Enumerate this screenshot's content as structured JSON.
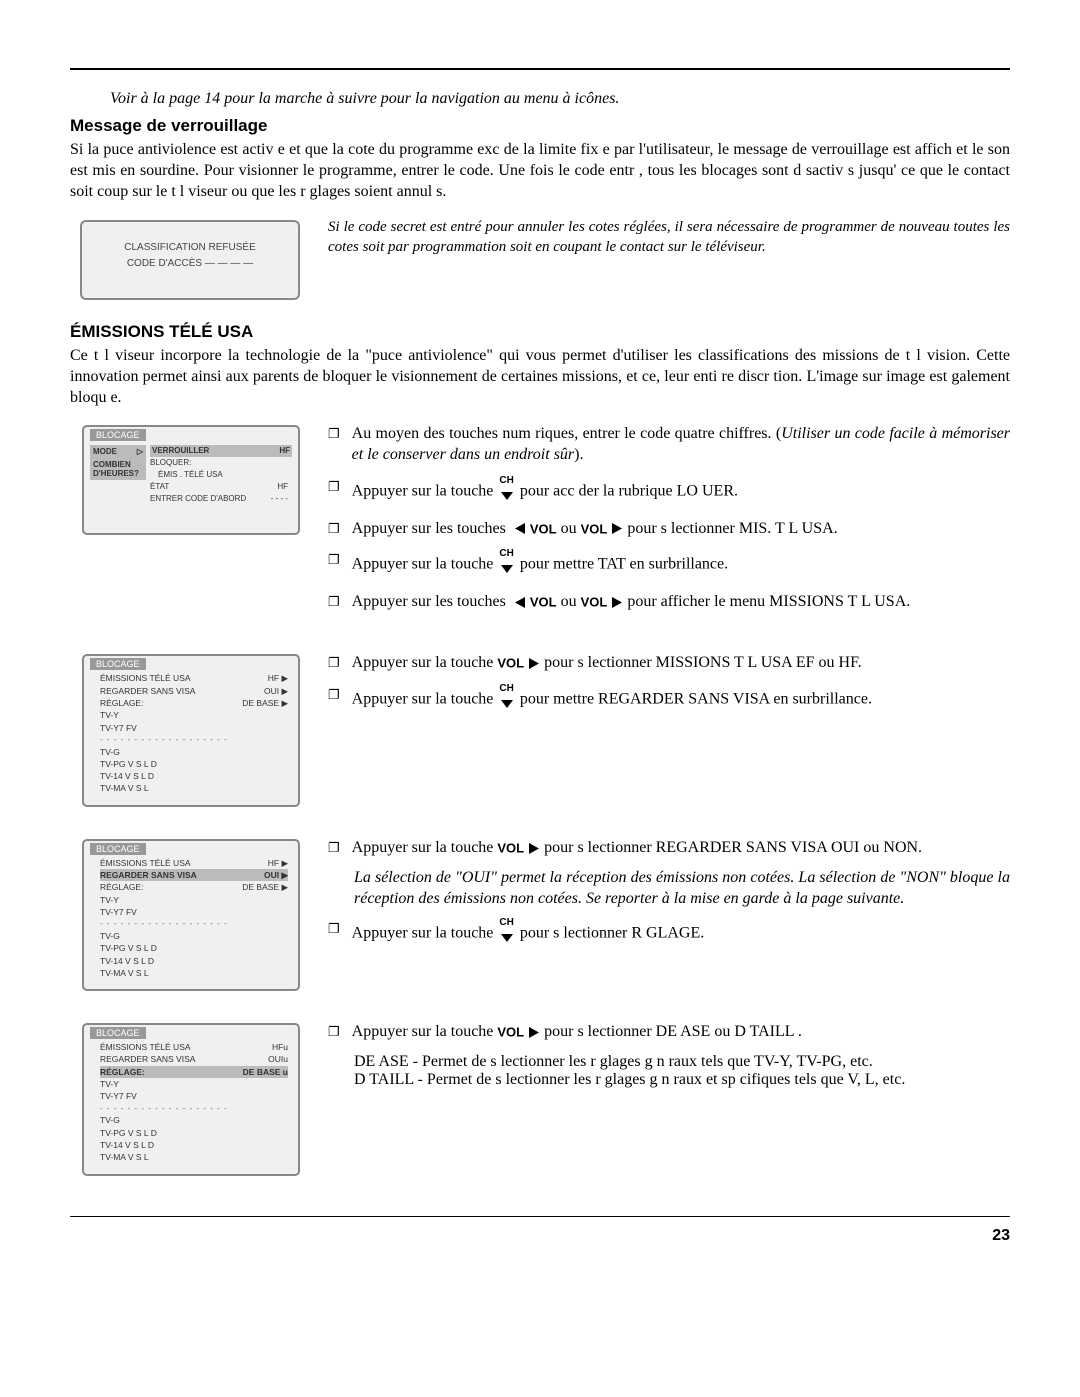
{
  "nav_note": "Voir à la page 14 pour la marche à suivre pour la navigation au menu à icônes.",
  "section1_title": "Message de verrouillage",
  "section1_body": "Si la puce antiviolence est activ e et que la cote du programme exc de la limite fix e par l'utilisateur, le message de verrouillage est affich  et le son est mis en sourdine. Pour visionner le programme, entrer le code. Une fois le code entr , tous les blocages sont d sactiv s jusqu' ce que le contact soit coup  sur le t l viseur ou que les r glages soient annul s.",
  "lockbox_line1": "CLASSIFICATION REFUSÉE",
  "lockbox_line2": "CODE D'ACCÈS  — — — —",
  "lock_note": "Si le code secret est entré pour annuler les cotes réglées, il sera nécessaire de programmer de nouveau toutes les cotes soit par programmation soit en coupant le contact sur le téléviseur.",
  "section2_title": "ÉMISSIONS TÉLÉ USA",
  "section2_body": "Ce t l viseur incorpore la technologie de la \"puce antiviolence\" qui vous permet d'utiliser les classifications des  missions de t l vision.  Cette innovation permet ainsi aux parents de bloquer le visionnement de certaines  missions, et ce,   leur enti re discr tion.  L'image sur image est  galement bloqu e.",
  "menu_title": "BLOCAGE",
  "menu1": {
    "left": [
      {
        "t": "MODE",
        "sel": true
      },
      {
        "t": "COMBIEN D'HEURES?",
        "sel": true
      }
    ],
    "right": [
      {
        "l": "VERROUILLER",
        "r": "HF",
        "hl": true
      },
      {
        "l": "BLOQUER:",
        "r": ""
      },
      {
        "l": "ÉMIS . TÉLÉ  USA",
        "r": "",
        "indent": true
      },
      {
        "l": "ÉTAT",
        "r": "HF"
      },
      {
        "l": "ENTRER CODE D'ABORD",
        "r": "- - - -"
      }
    ]
  },
  "menu2_rows": [
    {
      "l": "ÉMISSIONS TÉLÉ USA",
      "r": "HF ▶"
    },
    {
      "l": "REGARDER SANS VISA",
      "r": "OUI ▶"
    },
    {
      "l": "RÉGLAGE:",
      "r": "DE BASE ▶"
    },
    {
      "l": "TV-Y",
      "r": ""
    },
    {
      "l": "TV-Y7   FV",
      "r": ""
    },
    {
      "dash": "- - - - - - - - - - - - - - - - - - -"
    },
    {
      "l": "TV-G",
      "r": ""
    },
    {
      "l": "TV-PG   V  S  L  D",
      "r": ""
    },
    {
      "l": "TV-14    V  S  L  D",
      "r": ""
    },
    {
      "l": "TV-MA   V  S  L",
      "r": ""
    }
  ],
  "menu3_rows": [
    {
      "l": "ÉMISSIONS TÉLÉ USA",
      "r": "HF ▶"
    },
    {
      "l": "REGARDER SANS VISA",
      "r": "OUI ▶",
      "hl": true
    },
    {
      "l": "RÉGLAGE:",
      "r": "DE BASE ▶"
    },
    {
      "l": "TV-Y",
      "r": ""
    },
    {
      "l": "TV-Y7   FV",
      "r": ""
    },
    {
      "dash": "- - - - - - - - - - - - - - - - - - -"
    },
    {
      "l": "TV-G",
      "r": ""
    },
    {
      "l": "TV-PG   V  S  L  D",
      "r": ""
    },
    {
      "l": "TV-14    V  S  L  D",
      "r": ""
    },
    {
      "l": "TV-MA   V  S  L",
      "r": ""
    }
  ],
  "menu4_rows": [
    {
      "l": "ÉMISSIONS TÉLÉ USA",
      "r": "HFu"
    },
    {
      "l": "REGARDER SANS VISA",
      "r": "OUIu"
    },
    {
      "l": "RÉGLAGE:",
      "r": "DE BASE u",
      "hl": true,
      "bold": true
    },
    {
      "l": "TV-Y",
      "r": ""
    },
    {
      "l": "TV-Y7   FV",
      "r": ""
    },
    {
      "dash": "- - - - - - - - - - - - - - - - - - -"
    },
    {
      "l": "TV-G",
      "r": ""
    },
    {
      "l": "TV-PG   V  S  L  D",
      "r": ""
    },
    {
      "l": "TV-14    V  S  L  D",
      "r": ""
    },
    {
      "l": "TV-MA   V  S  L",
      "r": ""
    }
  ],
  "steps_block1": {
    "s1a": "Au moyen des touches num riques, entrer le code   quatre chiffres. (",
    "s1b": "Utiliser un code facile à mémoriser et le conserver dans un endroit sûr",
    "s1c": ").",
    "s2a": "Appuyer sur la touche ",
    "s2b": " pour acc der   la rubrique  LO UER.",
    "s3a": "Appuyer sur les touches ",
    "s3b": " ou ",
    "s3c": " pour s lectionner  MIS. T L  USA.",
    "s4a": "Appuyer sur la touche ",
    "s4b": " pour mettre  TAT en surbrillance.",
    "s5a": "Appuyer sur les touches ",
    "s5b": " ou ",
    "s5c": " pour afficher le menu  MISSIONS T L USA."
  },
  "steps_block2": {
    "s1a": "Appuyer sur la touche ",
    "s1b": " pour s lectionner  MISSIONS T L  USA EF ou HF.",
    "s2a": "Appuyer sur la touche ",
    "s2b": " pour mettre REGARDER SANS VISA en surbrillance."
  },
  "steps_block3": {
    "s1a": "Appuyer sur la touche ",
    "s1b": " pour s lectionner REGARDER SANS VISA  OUI ou NON.",
    "note": "La sélection de \"OUI\" permet la réception des émissions non cotées. La sélection de \"NON\" bloque la réception des émissions non cotées. Se reporter à la mise en garde à la page suivante.",
    "s2a": "Appuyer sur la touche ",
    "s2b": " pour s lectionner R GLAGE."
  },
  "steps_block4": {
    "s1a": "Appuyer sur la touche ",
    "s1b": " pour s lectionner DE  ASE ou D TAILL .",
    "line2": "DE  ASE - Permet de s lectionner les r glages g n raux tels que TV-Y, TV-PG, etc.",
    "line3": "D TAILL  - Permet de s lectionner les r glages g n raux et sp cifiques tels que V, L, etc."
  },
  "ch_label": "CH",
  "vol_label": "VOL",
  "page_number": "23"
}
